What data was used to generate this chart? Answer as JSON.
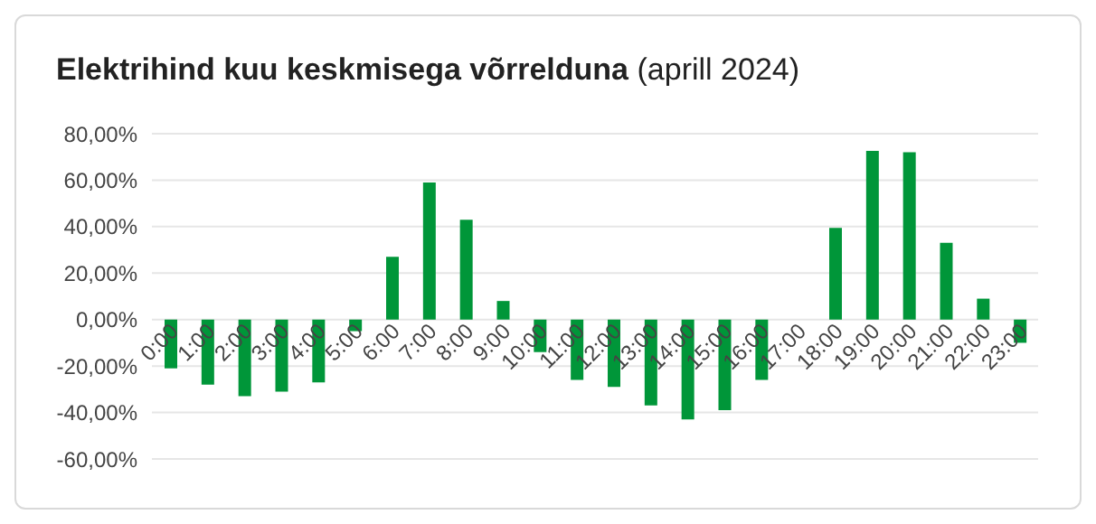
{
  "chart_data": {
    "type": "bar",
    "title": "Elektrihind kuu keskmisega võrrelduna",
    "subtitle": "(aprill 2024)",
    "categories": [
      "0:00",
      "1:00",
      "2:00",
      "3:00",
      "4:00",
      "5:00",
      "6:00",
      "7:00",
      "8:00",
      "9:00",
      "10:00",
      "11:00",
      "12:00",
      "13:00",
      "14:00",
      "15:00",
      "16:00",
      "17:00",
      "18:00",
      "19:00",
      "20:00",
      "21:00",
      "22:00",
      "23:00"
    ],
    "values": [
      -21,
      -28,
      -33,
      -31,
      -27,
      -5,
      27,
      59,
      43,
      8,
      -14,
      -26,
      -29,
      -37,
      -43,
      -39,
      -26,
      0,
      39.5,
      72.6,
      72,
      33,
      9,
      -10
    ],
    "color": "#009639",
    "ylim": [
      -60,
      80
    ],
    "yticks": [
      {
        "value": -60,
        "label": "-60,00%"
      },
      {
        "value": -40,
        "label": "-40,00%"
      },
      {
        "value": -20,
        "label": "-20,00%"
      },
      {
        "value": 0,
        "label": "0,00%"
      },
      {
        "value": 20,
        "label": "20,00%"
      },
      {
        "value": 40,
        "label": "40,00%"
      },
      {
        "value": 60,
        "label": "60,00%"
      },
      {
        "value": 80,
        "label": "80,00%"
      }
    ],
    "grid": "y",
    "legend": false
  }
}
